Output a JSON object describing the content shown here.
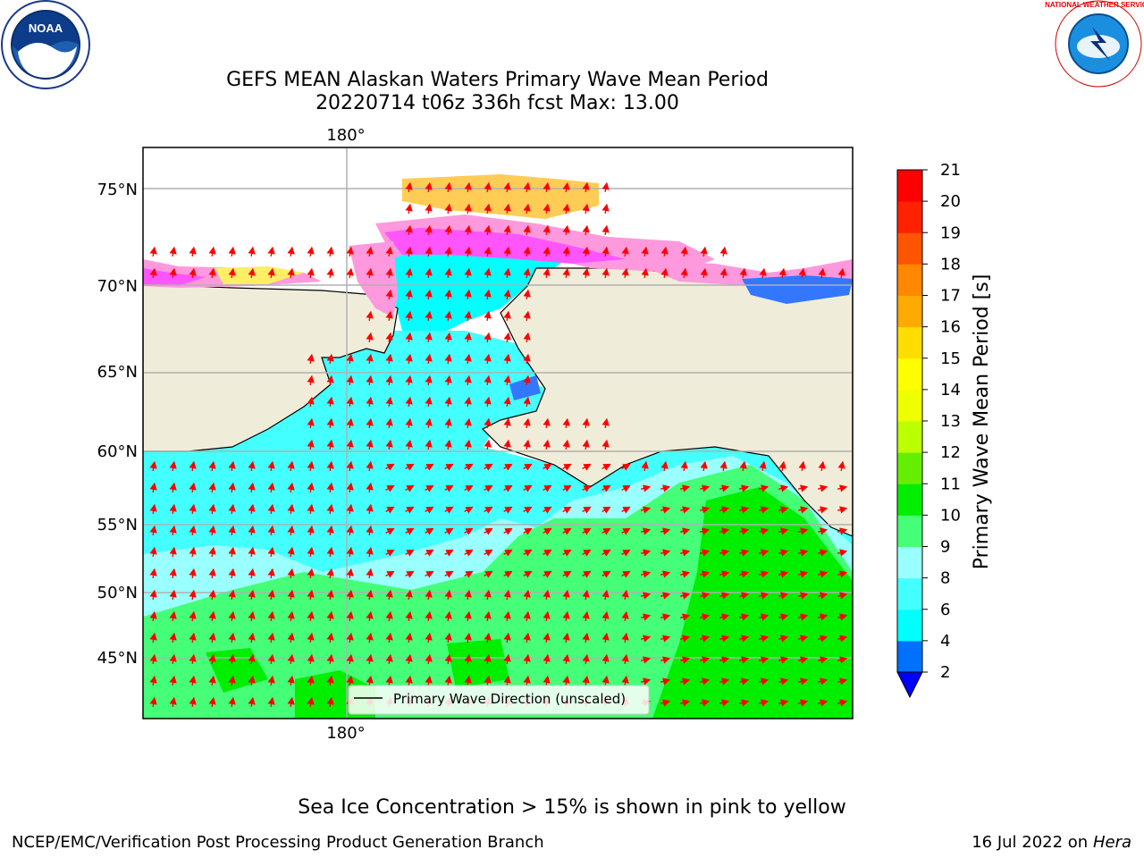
{
  "header": {
    "title_line1": "GEFS MEAN Alaskan Waters Primary Wave Mean Period",
    "title_line2": "20220714 t06z 336h fcst   Max: 13.00"
  },
  "logos": {
    "left": {
      "icon": "noaa-logo-icon",
      "text": "NOAA"
    },
    "right": {
      "icon": "nws-logo-icon",
      "text": "NATIONAL WEATHER SERVICE"
    }
  },
  "map": {
    "lon_labels": [
      "180°",
      "180°"
    ],
    "lat_labels": [
      "75°N",
      "70°N",
      "65°N",
      "60°N",
      "55°N",
      "50°N",
      "45°N"
    ],
    "legend_label": "Primary Wave Direction (unscaled)",
    "colors": {
      "land": "#efedd9",
      "arrow": "#ff0000",
      "grid": "#b0b0b0"
    }
  },
  "colorbar": {
    "label": "Primary Wave Mean Period [s]",
    "ticks": [
      "2",
      "4",
      "6",
      "8",
      "9",
      "10",
      "11",
      "12",
      "13",
      "14",
      "15",
      "16",
      "17",
      "18",
      "19",
      "20",
      "21"
    ],
    "colors": [
      "#0070ff",
      "#00ffff",
      "#44ffff",
      "#99ffff",
      "#44ff77",
      "#00ee00",
      "#66ee00",
      "#bbff00",
      "#eeff00",
      "#ffff00",
      "#ffdd00",
      "#ffaa00",
      "#ff8800",
      "#ff5500",
      "#ff2200",
      "#ff0000"
    ],
    "under_color": "#0000ff"
  },
  "footer": {
    "ice_note": "Sea Ice Concentration > 15% is shown in pink to yellow",
    "branch": "NCEP/EMC/Verification Post Processing Product Generation Branch",
    "date": "16 Jul 2022 on",
    "host": "Hera"
  }
}
